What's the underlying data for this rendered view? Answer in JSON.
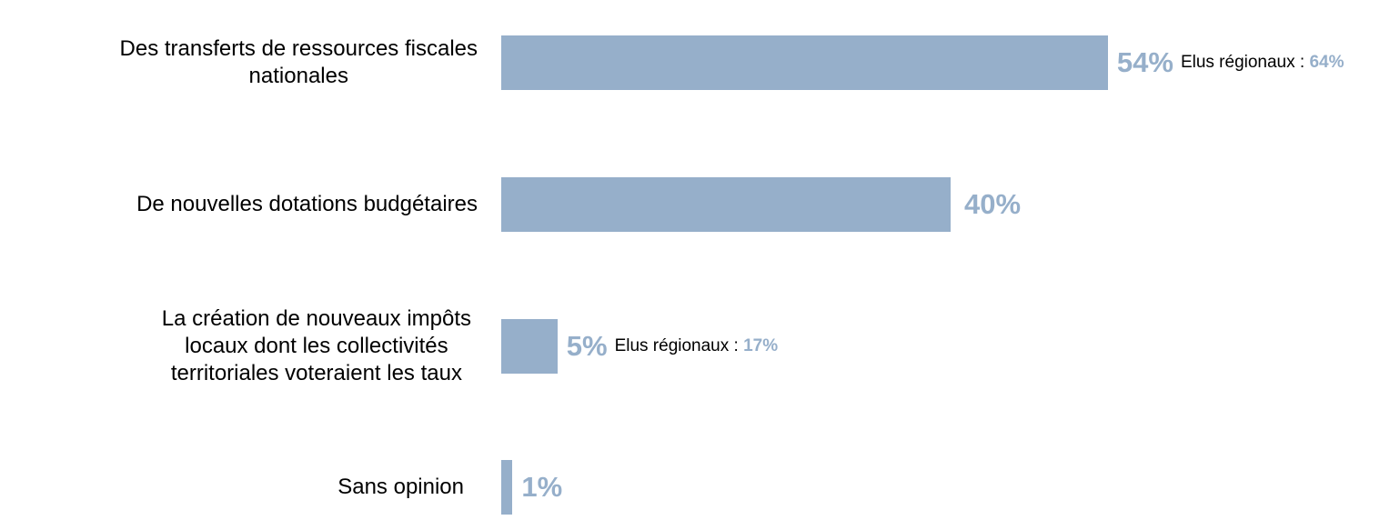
{
  "chart_data": {
    "type": "bar",
    "orientation": "horizontal",
    "bar_color": "#96AFCA",
    "value_color": "#96AFCA",
    "xlim": [
      0,
      100
    ],
    "grid": false,
    "categories": [
      "Des transferts de ressources fiscales\nnationales",
      "De nouvelles dotations budgétaires",
      "La création de nouveaux impôts\nlocaux dont les collectivités\nterritoriales voteraient les taux",
      "Sans opinion"
    ],
    "values": [
      54,
      40,
      5,
      1
    ],
    "value_labels": [
      "54%",
      "40%",
      "5%",
      "1%"
    ],
    "annotations": [
      {
        "label": "Elus régionaux : ",
        "value": "64%"
      },
      null,
      {
        "label": "Elus régionaux : ",
        "value": "17%"
      },
      null
    ]
  }
}
